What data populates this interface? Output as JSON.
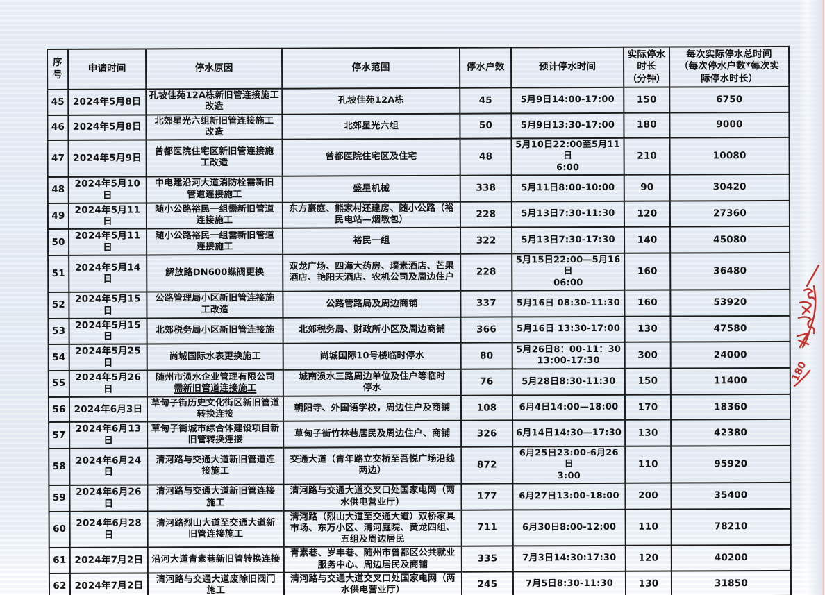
{
  "table": {
    "headers": [
      "序号",
      "申请时间",
      "停水原因",
      "停水范围",
      "停水户数",
      "预计停水时间",
      "实际停水\n时长\n（分钟）",
      "每次实际停水总时间\n（每次停水户数*每次实\n际停水时长）"
    ],
    "rows": [
      {
        "no": "45",
        "date": "2024年5月8日",
        "reason": "孔坡佳苑12A栋新旧管连接施工\n改造",
        "scope": "孔坡佳苑12A栋",
        "households": "45",
        "planned": "5月9日14:00-17:00",
        "duration": "150",
        "total": "6750"
      },
      {
        "no": "46",
        "date": "2024年5月8日",
        "reason": "北郊星光六组新旧管连接施工\n改造",
        "scope": "北郊星光六组",
        "households": "50",
        "planned": "5月9日13:30-17:00",
        "duration": "180",
        "total": "9000"
      },
      {
        "no": "47",
        "date": "2024年5月9日",
        "reason": "曾都医院住宅区新旧管连接施\n工改造",
        "scope": "曾都医院住宅区及住宅",
        "households": "48",
        "planned": "5月10日22:00至5月11日\n6:00",
        "duration": "210",
        "total": "10080"
      },
      {
        "no": "48",
        "date": "2024年5月10日",
        "reason": "中电建沿河大道消防栓需新旧\n管道连接施工",
        "scope": "盛星机械",
        "households": "338",
        "planned": "5月11日8:00-10:00",
        "duration": "90",
        "total": "30420"
      },
      {
        "no": "49",
        "date": "2024年5月11日",
        "reason": "随小公路裕民一组需新旧管道\n连接施工",
        "scope": "东方豪庭、熊家村还建房、随小公路（裕民电站—烟墩包）",
        "households": "228",
        "planned": "5月13日7:30-11:30",
        "duration": "120",
        "total": "27360"
      },
      {
        "no": "50",
        "date": "2024年5月11日",
        "reason": "随小公路裕民一组需新旧管道\n连接施工",
        "scope": "裕民一组",
        "households": "322",
        "planned": "5月13日7:30-17:30",
        "duration": "140",
        "total": "45080"
      },
      {
        "no": "51",
        "date": "2024年5月14日",
        "reason": "解放路DN600蝶阀更换",
        "scope": "双龙广场、四海大药房、璞素酒店、芒果酒店、艳阳天酒店、农机公司及周边住户",
        "households": "228",
        "planned": "5月15日22:00—5月16日\n06:00",
        "duration": "160",
        "total": "36480"
      },
      {
        "no": "52",
        "date": "2024年5月15日",
        "reason": "公路管理局小区新旧管连接施\n工改造",
        "scope": "公路管路局及周边商铺",
        "households": "337",
        "planned": "5月16日 08:30-11:30",
        "duration": "160",
        "total": "53920"
      },
      {
        "no": "53",
        "date": "2024年5月15日",
        "reason": "北郊税务局小区新旧管连接施",
        "scope": "北郊税务局、财政所小区及周边商铺",
        "households": "366",
        "planned": "5月16日 13:30-17:00",
        "duration": "130",
        "total": "47580"
      },
      {
        "no": "54",
        "date": "2024年5月25日",
        "reason": "尚城国际水表更换施工",
        "scope": "尚城国际10号楼临时停水",
        "households": "80",
        "planned": "5月26日8：00-11：30\n13:00-17:30",
        "duration": "300",
        "total": "24000"
      },
      {
        "no": "55",
        "date": "2024年5月26日",
        "reason": "随州市涢水企业管理有限公司",
        "reason_underline": "需新旧管道连接施工",
        "scope": "城南涢水三路周边单位及住户等临时\n停水",
        "households": "76",
        "planned": "5月28日8:30-11:30",
        "duration": "150",
        "total": "11400"
      },
      {
        "no": "56",
        "date": "2024年6月3日",
        "reason": "草甸子街历史文化街区新旧管道\n转换连接",
        "scope": "朝阳寺、外国语学校，周边住户及商铺",
        "households": "108",
        "planned": "6月4日14:00—18:00",
        "duration": "170",
        "total": "18360"
      },
      {
        "no": "57",
        "date": "2024年6月13日",
        "reason": "草甸子街城市综合体建设项目新\n旧管转换连接",
        "scope": "草甸子街竹林巷居民及周边住户、商铺",
        "households": "326",
        "planned": "6月14日14:30—17:30",
        "duration": "130",
        "total": "42380"
      },
      {
        "no": "58",
        "date": "2024年6月24日",
        "reason": "清河路与交通大道新旧管道连\n接施工",
        "scope": "交通大道（青年路立交桥至吾悦广场沿线两边）",
        "households": "872",
        "planned": "6月25日23:00-6月26日\n3:00",
        "duration": "110",
        "total": "95920"
      },
      {
        "no": "59",
        "date": "2024年6月26日",
        "reason": "清河路与交通大道新旧管连接\n施工",
        "scope": "清河路与交通大道交叉口处国家电网（两水供电营业厅）",
        "households": "177",
        "planned": "6月27日13:00-18:00",
        "duration": "200",
        "total": "35400"
      },
      {
        "no": "60",
        "date": "2024年6月28日",
        "reason": "清河路烈山大道至交通大道新\n旧管连接施工",
        "scope": "清河路（烈山大道至交通大道）双桥家具市场、东万小区、清河庭院、黄龙四组、五组及周边居民",
        "households": "711",
        "planned": "6月30日8:00-12:00",
        "duration": "110",
        "total": "78210"
      },
      {
        "no": "61",
        "date": "2024年7月2日",
        "reason": "沿河大道青素巷新旧管转换连接",
        "scope": "青素巷、岁丰巷、随州市曾都区公共就业服务中心、周边居民及商铺",
        "households": "335",
        "planned": "7月3日14:30:17:30",
        "duration": "120",
        "total": "40200"
      },
      {
        "no": "62",
        "date": "2024年7月2日",
        "reason": "清河路与交通大道废除旧阀门\n施工",
        "scope": "清河路与交通大道交叉口处国家电网（两水供电营业厅）",
        "households": "245",
        "planned": "7月5日8:30-11:30",
        "duration": "130",
        "total": "31850"
      }
    ]
  },
  "margin_note": {
    "text": "180",
    "color": "#c4312b"
  }
}
